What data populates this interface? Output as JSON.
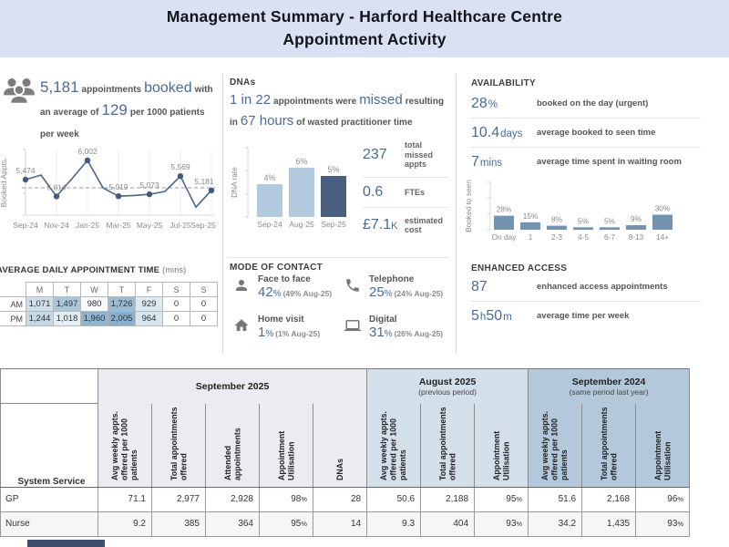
{
  "title": {
    "line1": "Management Summary - Harford Healthcare Centre",
    "line2": "Appointment Activity"
  },
  "colors": {
    "banner_bg": "#dae1f3",
    "accent_navy": "#4a6b94",
    "bar_light": "#b2c9de",
    "bar_dark": "#4a5f7e",
    "bar_medium": "#7493b0",
    "table_sep25_bg": "#eaecf1",
    "table_aug25_bg": "#d3dfe9",
    "table_sep24_bg": "#b3c8da"
  },
  "booked": {
    "s1": "5,181",
    "s2": "appointments",
    "s3": "booked",
    "s4": "with",
    "s5": "an average of",
    "s6": "129",
    "s7": "per 1000 patients",
    "s8": "per week"
  },
  "dna": {
    "header": "DNAs",
    "s1": "1 in 22",
    "s2": "appointments were",
    "s3": "missed",
    "s4": "resulting",
    "s5": "in",
    "s6": "67 hours",
    "s7": "of wasted practitioner time",
    "stats": [
      {
        "value": "237",
        "unit": "",
        "label": "total missed appts"
      },
      {
        "value": "0.6",
        "unit": "",
        "label": "FTEs"
      },
      {
        "value": "£7.1",
        "unit": "K",
        "label": "estimated cost"
      }
    ]
  },
  "mode_of_contact": {
    "header": "MODE OF CONTACT",
    "items": [
      {
        "icon": "person-icon",
        "label": "Face to face",
        "value": "42",
        "unit": "%",
        "prev": "(49% Aug-25)"
      },
      {
        "icon": "phone-icon",
        "label": "Telephone",
        "value": "25",
        "unit": "%",
        "prev": "(24% Aug-25)"
      },
      {
        "icon": "home-icon",
        "label": "Home visit",
        "value": "1",
        "unit": "%",
        "prev": "(1% Aug-25)"
      },
      {
        "icon": "laptop-icon",
        "label": "Digital",
        "value": "31",
        "unit": "%",
        "prev": "(26% Aug-25)"
      }
    ]
  },
  "availability": {
    "header": "AVAILABILITY",
    "stats": [
      {
        "value": "28",
        "unit": "%",
        "desc": "booked on the day (urgent)"
      },
      {
        "value": "10.4",
        "unit": "days",
        "desc": "average booked to seen time"
      },
      {
        "value": "7",
        "unit": "mins",
        "desc": "average time spent in waiting room"
      }
    ]
  },
  "enhanced_access": {
    "header": "ENHANCED ACCESS",
    "stats": [
      {
        "value": "87",
        "unit": "",
        "desc": "enhanced access appointments"
      },
      {
        "value": "5",
        "unit": "h",
        "value2": "50",
        "unit2": "m",
        "desc": "average time per week"
      }
    ]
  },
  "chart_data": [
    {
      "id": "booked_line",
      "type": "line",
      "x": [
        "Sep-24",
        "Oct-24",
        "Nov-24",
        "Dec-24",
        "Jan-25",
        "Feb-25",
        "Mar-25",
        "Apr-25",
        "May-25",
        "Jun-25",
        "Jul-25",
        "Aug-25",
        "Sep-25"
      ],
      "values": [
        5474,
        5600,
        5014,
        5500,
        6002,
        5250,
        5019,
        5040,
        5073,
        5150,
        5569,
        4720,
        5181
      ],
      "labeled_x": [
        "Sep-24",
        "Nov-24",
        "Jan-25",
        "Mar-25",
        "May-25",
        "Jul-25",
        "Sep-25"
      ],
      "labeled_values": [
        "5,474",
        "5,014",
        "6,002",
        "5,019",
        "5,073",
        "5,569",
        "5,181"
      ],
      "average_line": 5250,
      "ylabel": "Booked Appts.",
      "ylim": [
        4500,
        6300
      ],
      "line_color": "#4a6585",
      "marker_color": "#3f5a7c"
    },
    {
      "id": "dna_bar",
      "type": "bar",
      "categories": [
        "Sep-24",
        "Aug-25",
        "Sep-25"
      ],
      "values": [
        4,
        6,
        5
      ],
      "labels": [
        "4%",
        "6%",
        "5%"
      ],
      "ylabel": "DNA rate",
      "bar_colors": [
        "#b2c9de",
        "#b2c9de",
        "#4a5f7e"
      ]
    },
    {
      "id": "booked_to_seen_bar",
      "type": "bar",
      "categories": [
        "On day",
        "1",
        "2-3",
        "4-5",
        "6-7",
        "8-13",
        "14+"
      ],
      "values": [
        28,
        15,
        8,
        5,
        5,
        9,
        30
      ],
      "labels": [
        "28%",
        "15%",
        "8%",
        "5%",
        "5%",
        "9%",
        "30%"
      ],
      "ylabel": "Booked to seen",
      "bar_colors": [
        "#7493b0",
        "#7493b0",
        "#7493b0",
        "#7493b0",
        "#7493b0",
        "#7493b0",
        "#7493b0"
      ]
    },
    {
      "id": "daily_appt_heatmap",
      "type": "heatmap",
      "title": "AVERAGE DAILY APPOINTMENT TIME",
      "unit": "(mins)",
      "columns": [
        "M",
        "T",
        "W",
        "T",
        "F",
        "S",
        "S"
      ],
      "rows": [
        {
          "label": "AM",
          "values": [
            "1,071",
            "1,497",
            "980",
            "1,726",
            "929",
            "0",
            "0"
          ],
          "shades": [
            "#cddfeb",
            "#a9c7db",
            "#f8fbfd",
            "#9abbd5",
            "#dcebf3",
            "#ffffff",
            "#ffffff"
          ]
        },
        {
          "label": "PM",
          "values": [
            "1,244",
            "1,018",
            "1,960",
            "2,005",
            "964",
            "0",
            "0"
          ],
          "shades": [
            "#c3d9e7",
            "#e3eef5",
            "#8fb4d0",
            "#8aafcd",
            "#d7e7f0",
            "#ffffff",
            "#ffffff"
          ]
        }
      ]
    },
    {
      "id": "service_table",
      "type": "table",
      "service_header": "System Service",
      "groups": [
        {
          "title": "September 2025",
          "subtitle": "",
          "bg": "#eaecf1",
          "cols": [
            "Avg weekly appts. offered per 1000 patients",
            "Total appointments offered",
            "Attended appointments",
            "Appointment Utilisation",
            "DNAs"
          ]
        },
        {
          "title": "August 2025",
          "subtitle": "(previous period)",
          "bg": "#d3dfe9",
          "cols": [
            "Avg weekly appts. offered per 1000 patients",
            "Total appointments offered",
            "Appointment Utilisation"
          ]
        },
        {
          "title": "September 2024",
          "subtitle": "(same period last year)",
          "bg": "#b3c8da",
          "cols": [
            "Avg weekly appts. offered per 1000 patients",
            "Total appointments offered",
            "Appointment Utilisation"
          ]
        }
      ],
      "rows": [
        {
          "service": "GP",
          "values": [
            "71.1",
            "2,977",
            "2,928",
            "98%",
            "28",
            "50.6",
            "2,188",
            "95%",
            "51.6",
            "2,168",
            "96%"
          ]
        },
        {
          "service": "Nurse",
          "values": [
            "9.2",
            "385",
            "364",
            "95%",
            "14",
            "9.3",
            "404",
            "93%",
            "34.2",
            "1,435",
            "93%"
          ]
        }
      ]
    }
  ]
}
